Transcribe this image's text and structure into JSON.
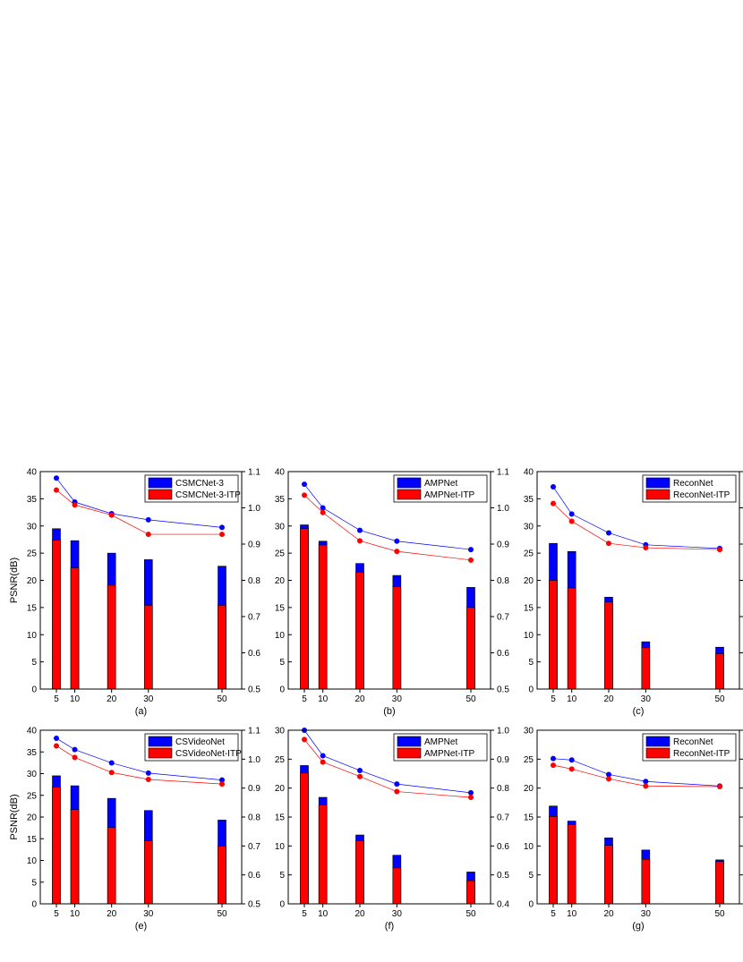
{
  "colors": {
    "blue": "#0000ff",
    "red": "#ff0000"
  },
  "chart_data": [
    {
      "type": "bar+line",
      "panel_label": "(a)",
      "ylabel": "PSNR(dB)",
      "ylim": [
        0,
        40
      ],
      "yticks": [
        "0",
        "5",
        "10",
        "15",
        "20",
        "25",
        "30",
        "35",
        "40"
      ],
      "y2lim": [
        0.5,
        1.1
      ],
      "y2ticks": [
        "0.5",
        "0.6",
        "0.7",
        "0.8",
        "0.9",
        "1.0",
        "1.1"
      ],
      "x": [
        5,
        10,
        20,
        30,
        50
      ],
      "xticks": [
        "5",
        "10",
        "20",
        "30",
        "50"
      ],
      "legend": [
        "CSMCNet-3",
        "CSMCNet-3-ITP"
      ],
      "bars_blue": [
        29.5,
        27.3,
        25.0,
        23.8,
        22.6
      ],
      "bars_red": [
        27.4,
        22.3,
        19.1,
        15.4,
        15.4
      ],
      "line_blue": [
        1.082,
        1.016,
        0.984,
        0.967,
        0.946
      ],
      "line_red": [
        1.049,
        1.008,
        0.98,
        0.927,
        0.927
      ]
    },
    {
      "type": "bar+line",
      "panel_label": "(b)",
      "ylabel": "",
      "ylim": [
        0,
        40
      ],
      "yticks": [
        "0",
        "5",
        "10",
        "15",
        "20",
        "25",
        "30",
        "35",
        "40"
      ],
      "y2lim": [
        0.5,
        1.1
      ],
      "y2ticks": [
        "0.5",
        "0.6",
        "0.7",
        "0.8",
        "0.9",
        "1.0",
        "1.1"
      ],
      "x": [
        5,
        10,
        20,
        30,
        50
      ],
      "xticks": [
        "5",
        "10",
        "20",
        "30",
        "50"
      ],
      "legend": [
        "AMPNet",
        "AMPNet-ITP"
      ],
      "bars_blue": [
        30.2,
        27.2,
        23.1,
        20.9,
        18.7
      ],
      "bars_red": [
        29.5,
        26.5,
        21.5,
        18.8,
        15.0
      ],
      "line_blue": [
        1.065,
        1.0,
        0.938,
        0.908,
        0.885
      ],
      "line_red": [
        1.035,
        0.987,
        0.909,
        0.88,
        0.856
      ]
    },
    {
      "type": "bar+line",
      "panel_label": "(c)",
      "ylabel": "",
      "ylim": [
        0,
        40
      ],
      "yticks": [
        "0",
        "5",
        "10",
        "15",
        "20",
        "25",
        "30",
        "35",
        "40"
      ],
      "y2lim": [
        0.5,
        1.1
      ],
      "y2ticks": [
        "",
        "",
        "",
        "",
        "",
        "",
        ""
      ],
      "x": [
        5,
        10,
        20,
        30,
        50
      ],
      "xticks": [
        "5",
        "10",
        "20",
        "30",
        "50"
      ],
      "legend": [
        "ReconNet",
        "ReconNet-ITP"
      ],
      "bars_blue": [
        26.8,
        25.3,
        16.9,
        8.7,
        7.7
      ],
      "bars_red": [
        20.0,
        18.6,
        16.0,
        7.6,
        6.5
      ],
      "line_blue": [
        1.058,
        0.983,
        0.931,
        0.898,
        0.888
      ],
      "line_red": [
        1.012,
        0.963,
        0.902,
        0.89,
        0.885
      ]
    },
    {
      "type": "bar+line",
      "panel_label": "(e)",
      "ylabel": "PSNR(dB)",
      "ylim": [
        0,
        40
      ],
      "yticks": [
        "0",
        "5",
        "10",
        "15",
        "20",
        "25",
        "30",
        "35",
        "40"
      ],
      "y2lim": [
        0.5,
        1.1
      ],
      "y2ticks": [
        "0.5",
        "0.6",
        "0.7",
        "0.8",
        "0.9",
        "1.0",
        "1.1"
      ],
      "x": [
        5,
        10,
        20,
        30,
        50
      ],
      "xticks": [
        "5",
        "10",
        "20",
        "30",
        "50"
      ],
      "legend": [
        "CSVideoNet",
        "CSVideoNet-ITP"
      ],
      "bars_blue": [
        29.5,
        27.2,
        24.3,
        21.5,
        19.3
      ],
      "bars_red": [
        26.9,
        21.7,
        17.6,
        14.5,
        13.3
      ],
      "line_blue": [
        1.072,
        1.033,
        0.987,
        0.952,
        0.928
      ],
      "line_red": [
        1.046,
        1.006,
        0.954,
        0.93,
        0.914
      ]
    },
    {
      "type": "bar+line",
      "panel_label": "(f)",
      "ylabel": "",
      "ylim": [
        0,
        30
      ],
      "yticks": [
        "0",
        "5",
        "10",
        "15",
        "20",
        "25",
        "30"
      ],
      "y2lim": [
        0.4,
        1.0
      ],
      "y2ticks": [
        "0.4",
        "0.5",
        "0.6",
        "0.7",
        "0.8",
        "0.9",
        "1.0"
      ],
      "x": [
        5,
        10,
        20,
        30,
        50
      ],
      "xticks": [
        "5",
        "10",
        "20",
        "30",
        "50"
      ],
      "legend": [
        "AMPNet",
        "AMPNet-ITP"
      ],
      "bars_blue": [
        23.9,
        18.4,
        11.9,
        8.4,
        5.5
      ],
      "bars_red": [
        22.6,
        17.1,
        10.9,
        6.2,
        4.0
      ],
      "line_blue": [
        1.0,
        0.912,
        0.861,
        0.814,
        0.784
      ],
      "line_red": [
        0.968,
        0.89,
        0.84,
        0.788,
        0.768
      ]
    },
    {
      "type": "bar+line",
      "panel_label": "(g)",
      "ylabel": "",
      "ylim": [
        0,
        30
      ],
      "yticks": [
        "0",
        "5",
        "10",
        "15",
        "20",
        "25",
        "30"
      ],
      "y2lim": [
        0.4,
        1.0
      ],
      "y2ticks": [
        "0.4",
        "0.5",
        "0.6",
        "0.7",
        "0.8",
        "0.9",
        "1.0"
      ],
      "x": [
        5,
        10,
        20,
        30,
        50
      ],
      "xticks": [
        "5",
        "10",
        "20",
        "30",
        "50"
      ],
      "legend": [
        "ReconNet",
        "ReconNet-ITP"
      ],
      "bars_blue": [
        16.9,
        14.3,
        11.4,
        9.3,
        7.6
      ],
      "bars_red": [
        15.1,
        13.7,
        10.1,
        7.7,
        7.3
      ],
      "line_blue": [
        0.902,
        0.897,
        0.847,
        0.823,
        0.807
      ],
      "line_red": [
        0.879,
        0.866,
        0.832,
        0.807,
        0.805
      ]
    }
  ]
}
